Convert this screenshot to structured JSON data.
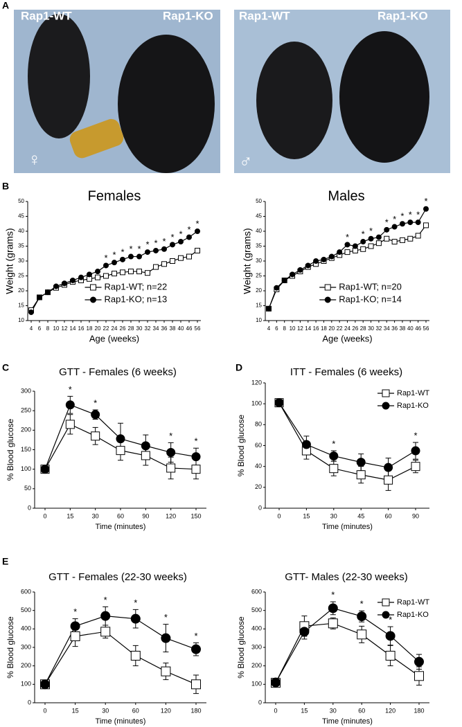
{
  "panels": [
    "A",
    "B",
    "C",
    "D",
    "E"
  ],
  "photos": [
    {
      "labels": [
        "Rap1-WT",
        "Rap1-KO"
      ],
      "sex": "♀"
    },
    {
      "labels": [
        "Rap1-WT",
        "Rap1-KO"
      ],
      "sex": "♂"
    }
  ],
  "chart_data": [
    {
      "type": "line",
      "title": "Females",
      "x_label": "Age (weeks)",
      "y_label": "Weight (grams)",
      "categories": [
        4,
        6,
        8,
        10,
        12,
        14,
        16,
        18,
        20,
        22,
        24,
        26,
        28,
        30,
        32,
        34,
        36,
        38,
        40,
        46,
        56
      ],
      "ylim": [
        10,
        50
      ],
      "yticks": [
        10,
        15,
        20,
        25,
        30,
        35,
        40,
        45,
        50
      ],
      "legend": "lower right",
      "significance_label": "*",
      "significant": [
        false,
        false,
        false,
        false,
        false,
        false,
        false,
        false,
        false,
        true,
        true,
        true,
        true,
        true,
        true,
        true,
        true,
        true,
        true,
        true,
        true
      ],
      "series": [
        {
          "name": "Rap1-WT; n=22",
          "color": "#000000",
          "marker": "square-open",
          "values": [
            13.5,
            17.8,
            19.5,
            21,
            22,
            23,
            23.5,
            24,
            24.5,
            25,
            25.8,
            26.2,
            26.5,
            26.5,
            26,
            28,
            29,
            30,
            31,
            31.5,
            33.5
          ]
        },
        {
          "name": "Rap1-KO; n=13",
          "color": "#000000",
          "marker": "circle",
          "values": [
            12.8,
            17.8,
            19.5,
            21.5,
            22.5,
            23.5,
            24.5,
            25.5,
            26.5,
            28.5,
            29.5,
            30.5,
            31.5,
            31.5,
            33,
            33.5,
            34,
            35.5,
            36.5,
            38,
            40
          ]
        }
      ]
    },
    {
      "type": "line",
      "title": "Males",
      "x_label": "Age (weeks)",
      "y_label": "Weight (grams)",
      "categories": [
        4,
        6,
        8,
        10,
        12,
        14,
        16,
        18,
        20,
        22,
        24,
        26,
        28,
        30,
        32,
        34,
        36,
        38,
        40,
        46,
        56
      ],
      "ylim": [
        10,
        50
      ],
      "yticks": [
        10,
        15,
        20,
        25,
        30,
        35,
        40,
        45,
        50
      ],
      "legend": "lower right",
      "significance_label": "*",
      "significant": [
        false,
        false,
        false,
        false,
        false,
        false,
        false,
        false,
        false,
        false,
        true,
        false,
        true,
        true,
        false,
        true,
        true,
        true,
        true,
        true,
        true
      ],
      "series": [
        {
          "name": "Rap1-WT; n=20",
          "color": "#000000",
          "marker": "square-open",
          "values": [
            14,
            20.5,
            23.5,
            25,
            26.5,
            28,
            29,
            30,
            31,
            32,
            33,
            33.5,
            34,
            35,
            36,
            37.5,
            36.5,
            37,
            37.5,
            38.5,
            42
          ]
        },
        {
          "name": "Rap1-KO; n=14",
          "color": "#000000",
          "marker": "circle",
          "values": [
            14,
            21,
            23.5,
            25.5,
            27,
            28.5,
            30,
            30.5,
            31.5,
            33,
            35.5,
            35,
            36.5,
            37.5,
            38,
            40.5,
            41.5,
            42.5,
            43,
            43,
            47.5
          ]
        }
      ]
    },
    {
      "type": "line",
      "title": "GTT - Females (6 weeks)",
      "x_label": "Time (minutes)",
      "y_label": "% Blood glucose",
      "categories": [
        0,
        15,
        30,
        60,
        90,
        120,
        150
      ],
      "ylim": [
        0,
        300
      ],
      "yticks": [
        0,
        50,
        100,
        150,
        200,
        250,
        300
      ],
      "significance_label": "*",
      "significant": [
        false,
        true,
        true,
        false,
        false,
        true,
        true
      ],
      "series": [
        {
          "name": "Rap1-WT",
          "color": "#000000",
          "marker": "square-open",
          "values": [
            100,
            215,
            185,
            148,
            135,
            103,
            100
          ],
          "errors": [
            0,
            25,
            22,
            25,
            25,
            28,
            25
          ]
        },
        {
          "name": "Rap1-KO",
          "color": "#000000",
          "marker": "circle",
          "values": [
            100,
            265,
            240,
            178,
            160,
            143,
            132
          ],
          "errors": [
            0,
            22,
            12,
            40,
            28,
            25,
            22
          ]
        }
      ]
    },
    {
      "type": "line",
      "title": "ITT - Females (6 weeks)",
      "x_label": "Time (minutes)",
      "y_label": "% Blood glucose",
      "categories": [
        0,
        15,
        30,
        45,
        60,
        90
      ],
      "ylim": [
        0,
        120
      ],
      "yticks": [
        0,
        20,
        40,
        60,
        80,
        100,
        120
      ],
      "legend": "upper right",
      "significance_label": "*",
      "significant": [
        false,
        false,
        true,
        false,
        false,
        true
      ],
      "series": [
        {
          "name": "Rap1-WT",
          "color": "#000000",
          "marker": "square-open",
          "values": [
            101,
            55,
            38,
            32,
            27,
            40
          ],
          "errors": [
            0,
            8,
            7,
            8,
            10,
            6
          ]
        },
        {
          "name": "Rap1-KO",
          "color": "#000000",
          "marker": "circle",
          "values": [
            101,
            61,
            50,
            44,
            39,
            55
          ],
          "errors": [
            0,
            8,
            5,
            8,
            9,
            8
          ]
        }
      ]
    },
    {
      "type": "line",
      "title": "GTT - Females (22-30 weeks)",
      "x_label": "Time (minutes)",
      "y_label": "% Blood glucose",
      "categories": [
        0,
        15,
        30,
        60,
        120,
        180
      ],
      "ylim": [
        0,
        600
      ],
      "yticks": [
        0,
        100,
        200,
        300,
        400,
        500,
        600
      ],
      "significance_label": "*",
      "significant": [
        false,
        true,
        true,
        true,
        true,
        true
      ],
      "series": [
        {
          "name": "Rap1-WT",
          "color": "#000000",
          "marker": "square-open",
          "values": [
            100,
            360,
            385,
            255,
            170,
            100
          ],
          "errors": [
            10,
            55,
            35,
            55,
            45,
            50
          ]
        },
        {
          "name": "Rap1-KO",
          "color": "#000000",
          "marker": "circle",
          "values": [
            100,
            415,
            470,
            455,
            350,
            290
          ],
          "errors": [
            10,
            40,
            50,
            50,
            75,
            35
          ]
        }
      ]
    },
    {
      "type": "line",
      "title": "GTT- Males (22-30 weeks)",
      "x_label": "Time (minutes)",
      "y_label": "% Blood glucose",
      "categories": [
        0,
        15,
        30,
        60,
        120,
        180
      ],
      "ylim": [
        0,
        600
      ],
      "yticks": [
        0,
        100,
        200,
        300,
        400,
        500,
        600
      ],
      "legend": "upper right",
      "significance_label": "*",
      "significant": [
        false,
        false,
        true,
        true,
        true,
        false
      ],
      "series": [
        {
          "name": "Rap1-WT",
          "color": "#000000",
          "marker": "square-open",
          "values": [
            108,
            415,
            430,
            370,
            255,
            145
          ],
          "errors": [
            10,
            55,
            30,
            45,
            55,
            50
          ]
        },
        {
          "name": "Rap1-KO",
          "color": "#000000",
          "marker": "circle",
          "values": [
            110,
            385,
            512,
            468,
            362,
            222
          ],
          "errors": [
            10,
            40,
            35,
            30,
            50,
            40
          ]
        }
      ]
    }
  ]
}
